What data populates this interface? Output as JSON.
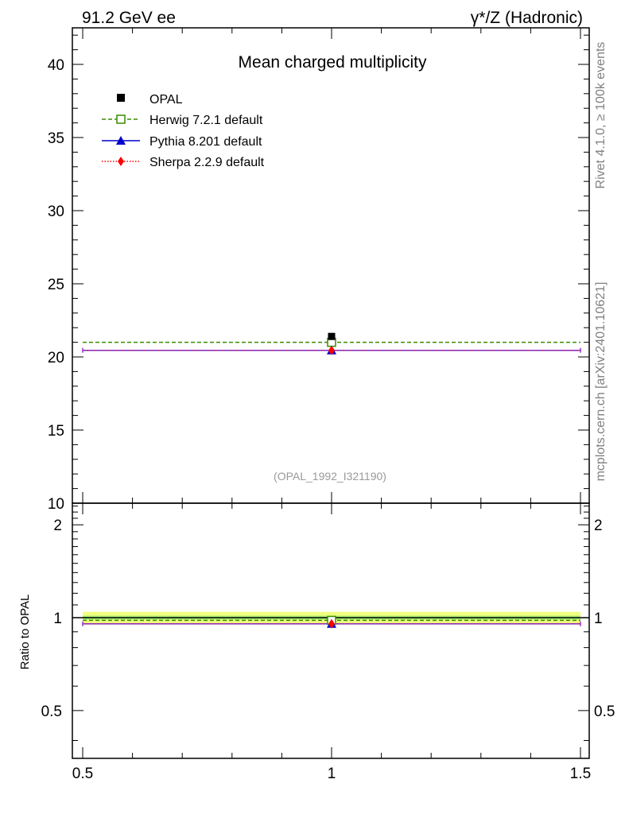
{
  "header": {
    "left": "91.2 GeV ee",
    "right": "γ*/Z (Hadronic)"
  },
  "side_labels": {
    "rivet": "Rivet 4.1.0, ≥ 100k events",
    "mcplots": "mcplots.cern.ch [arXiv:2401.10621]"
  },
  "chart_data": [
    {
      "type": "scatter",
      "title": "Mean charged multiplicity",
      "analysis_id": "(OPAL_1992_I321190)",
      "xlim": [
        0.5,
        1.5
      ],
      "ylim": [
        10,
        42.5
      ],
      "yticks": [
        10,
        15,
        20,
        25,
        30,
        35,
        40
      ],
      "ytick_labels": [
        "10",
        "15",
        "20",
        "25",
        "30",
        "35",
        "40"
      ],
      "legend_position": "top-left",
      "series": [
        {
          "name": "OPAL",
          "kind": "data",
          "x": 1,
          "y": 21.4,
          "color": "#000000",
          "marker": "square-filled"
        },
        {
          "name": "Herwig 7.2.1 default",
          "kind": "mc",
          "x": 1,
          "y": 21.0,
          "color": "#3a8c00",
          "marker": "square-open",
          "line": "dashed"
        },
        {
          "name": "Pythia 8.201 default",
          "kind": "mc",
          "x": 1,
          "y": 20.45,
          "color": "#0000cc",
          "marker": "triangle",
          "line": "solid"
        },
        {
          "name": "Sherpa 2.2.9 default",
          "kind": "mc",
          "x": 1,
          "y": 20.45,
          "color": "#ff0000",
          "marker": "diamond",
          "line": "dotted"
        }
      ]
    },
    {
      "type": "scatter",
      "ylabel": "Ratio to OPAL",
      "xlim": [
        0.5,
        1.5
      ],
      "ylim": [
        0.35,
        2.35
      ],
      "yticks": [
        0.5,
        1,
        2
      ],
      "ytick_labels": [
        "0.5",
        "1",
        "2"
      ],
      "xticks": [
        0.5,
        1,
        1.5
      ],
      "xtick_labels": [
        "0.5",
        "1",
        "1.5"
      ],
      "band": {
        "inner": [
          0.985,
          1.015
        ],
        "outer": [
          0.955,
          1.045
        ]
      },
      "series": [
        {
          "name": "Herwig 7.2.1 default",
          "y": 0.98,
          "color": "#3a8c00",
          "marker": "square-open",
          "line": "dashed"
        },
        {
          "name": "Pythia 8.201 default",
          "y": 0.955,
          "color": "#0000cc",
          "marker": "triangle",
          "line": "solid"
        },
        {
          "name": "Sherpa 2.2.9 default",
          "y": 0.955,
          "color": "#ff0000",
          "marker": "diamond",
          "line": "dotted"
        }
      ]
    }
  ],
  "colors": {
    "band_outer": "#f0ff80",
    "band_inner": "#a8ef70",
    "frame": "#000000",
    "side_text": "#808080",
    "purple_line": "#9933cc"
  }
}
